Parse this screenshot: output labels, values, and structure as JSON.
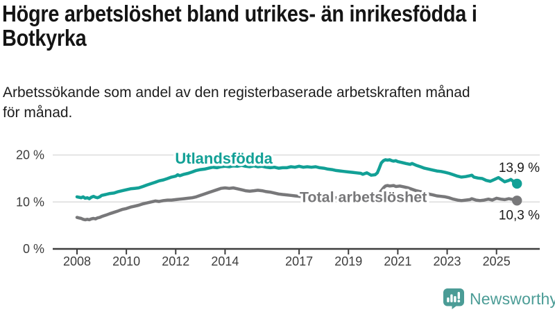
{
  "header": {
    "title_lines": [
      "Högre arbetslöshet bland utrikes- än inrikesfödda i",
      "Botkyrka"
    ],
    "subtitle_lines": [
      "Arbetssökande som andel av den registerbaserade arbetskraften månad",
      "för månad."
    ]
  },
  "branding": {
    "name": "Newsworthy",
    "icon": "newsworthy-chart-bubble-icon",
    "color": "#4b9c96"
  },
  "chart_data": {
    "type": "line",
    "title": "Högre arbetslöshet bland utrikes- än inrikesfödda i Botkyrka",
    "subtitle": "Arbetssökande som andel av den registerbaserade arbetskraften månad för månad.",
    "unit": "%",
    "grid": "horizontal-only",
    "legend": "inline-labels",
    "axis_color": "#3d3d3d",
    "grid_color": "#d9d9d9",
    "end_label_color": "#1a1a1a",
    "xlim": [
      2008,
      2025.83
    ],
    "ylim": [
      0,
      20
    ],
    "x_ticks": [
      2008,
      2010,
      2012,
      2014,
      2017,
      2019,
      2021,
      2023,
      2025
    ],
    "y_ticks": [
      {
        "value": 0,
        "label": "0 %"
      },
      {
        "value": 10,
        "label": "10 %"
      },
      {
        "value": 20,
        "label": "20 %"
      }
    ],
    "series": [
      {
        "name": "Utlandsfödda",
        "color": "#12a096",
        "line_width": 4.5,
        "label_anchor": {
          "x": 2013.95,
          "y": 18.2
        },
        "end_label": "13,9 %",
        "end_value": 13.9,
        "end_label_position": "above",
        "points": [
          [
            2008.0,
            11.1
          ],
          [
            2008.08,
            11.0
          ],
          [
            2008.17,
            10.9
          ],
          [
            2008.25,
            11.1
          ],
          [
            2008.33,
            10.8
          ],
          [
            2008.42,
            10.9
          ],
          [
            2008.5,
            10.7
          ],
          [
            2008.58,
            11.0
          ],
          [
            2008.67,
            11.2
          ],
          [
            2008.75,
            11.0
          ],
          [
            2008.83,
            10.9
          ],
          [
            2008.92,
            11.1
          ],
          [
            2009.0,
            11.4
          ],
          [
            2009.17,
            11.6
          ],
          [
            2009.33,
            11.8
          ],
          [
            2009.5,
            11.9
          ],
          [
            2009.67,
            12.2
          ],
          [
            2009.83,
            12.4
          ],
          [
            2010.0,
            12.6
          ],
          [
            2010.17,
            12.8
          ],
          [
            2010.33,
            12.9
          ],
          [
            2010.5,
            13.0
          ],
          [
            2010.67,
            13.3
          ],
          [
            2010.83,
            13.6
          ],
          [
            2011.0,
            13.9
          ],
          [
            2011.17,
            14.2
          ],
          [
            2011.33,
            14.5
          ],
          [
            2011.5,
            14.7
          ],
          [
            2011.67,
            15.0
          ],
          [
            2011.83,
            15.3
          ],
          [
            2012.0,
            15.5
          ],
          [
            2012.08,
            15.8
          ],
          [
            2012.17,
            15.6
          ],
          [
            2012.33,
            15.9
          ],
          [
            2012.5,
            16.1
          ],
          [
            2012.67,
            16.4
          ],
          [
            2012.83,
            16.7
          ],
          [
            2013.0,
            16.9
          ],
          [
            2013.17,
            17.0
          ],
          [
            2013.33,
            17.2
          ],
          [
            2013.5,
            17.4
          ],
          [
            2013.67,
            17.3
          ],
          [
            2013.83,
            17.5
          ],
          [
            2014.0,
            17.6
          ],
          [
            2014.17,
            17.5
          ],
          [
            2014.33,
            17.7
          ],
          [
            2014.5,
            17.6
          ],
          [
            2014.67,
            17.8
          ],
          [
            2014.83,
            17.6
          ],
          [
            2015.0,
            17.5
          ],
          [
            2015.17,
            17.7
          ],
          [
            2015.33,
            17.5
          ],
          [
            2015.5,
            17.6
          ],
          [
            2015.67,
            17.4
          ],
          [
            2015.83,
            17.3
          ],
          [
            2016.0,
            17.4
          ],
          [
            2016.17,
            17.2
          ],
          [
            2016.33,
            17.3
          ],
          [
            2016.5,
            17.3
          ],
          [
            2016.67,
            17.5
          ],
          [
            2016.83,
            17.4
          ],
          [
            2017.0,
            17.6
          ],
          [
            2017.17,
            17.4
          ],
          [
            2017.33,
            17.5
          ],
          [
            2017.5,
            17.4
          ],
          [
            2017.67,
            17.5
          ],
          [
            2017.83,
            17.3
          ],
          [
            2018.0,
            17.2
          ],
          [
            2018.17,
            17.0
          ],
          [
            2018.33,
            16.9
          ],
          [
            2018.5,
            16.7
          ],
          [
            2018.67,
            16.6
          ],
          [
            2018.83,
            16.5
          ],
          [
            2019.0,
            16.4
          ],
          [
            2019.17,
            16.3
          ],
          [
            2019.33,
            16.2
          ],
          [
            2019.5,
            16.1
          ],
          [
            2019.58,
            15.9
          ],
          [
            2019.75,
            16.2
          ],
          [
            2019.92,
            15.7
          ],
          [
            2020.08,
            15.8
          ],
          [
            2020.17,
            16.2
          ],
          [
            2020.25,
            17.2
          ],
          [
            2020.33,
            18.3
          ],
          [
            2020.42,
            18.8
          ],
          [
            2020.5,
            19.0
          ],
          [
            2020.58,
            18.9
          ],
          [
            2020.67,
            19.0
          ],
          [
            2020.75,
            18.8
          ],
          [
            2020.83,
            18.7
          ],
          [
            2020.92,
            18.8
          ],
          [
            2021.0,
            18.6
          ],
          [
            2021.17,
            18.4
          ],
          [
            2021.33,
            18.2
          ],
          [
            2021.5,
            18.0
          ],
          [
            2021.58,
            18.2
          ],
          [
            2021.75,
            17.8
          ],
          [
            2021.92,
            17.5
          ],
          [
            2022.08,
            17.2
          ],
          [
            2022.25,
            17.0
          ],
          [
            2022.42,
            16.8
          ],
          [
            2022.58,
            16.6
          ],
          [
            2022.75,
            16.5
          ],
          [
            2022.92,
            16.3
          ],
          [
            2023.08,
            16.1
          ],
          [
            2023.25,
            15.8
          ],
          [
            2023.42,
            15.5
          ],
          [
            2023.58,
            15.3
          ],
          [
            2023.75,
            15.4
          ],
          [
            2023.92,
            15.6
          ],
          [
            2024.0,
            15.7
          ],
          [
            2024.08,
            15.3
          ],
          [
            2024.25,
            15.1
          ],
          [
            2024.42,
            15.0
          ],
          [
            2024.58,
            14.6
          ],
          [
            2024.75,
            14.4
          ],
          [
            2024.92,
            14.8
          ],
          [
            2025.08,
            15.2
          ],
          [
            2025.25,
            14.6
          ],
          [
            2025.33,
            14.3
          ],
          [
            2025.5,
            14.6
          ],
          [
            2025.58,
            14.8
          ],
          [
            2025.7,
            14.3
          ],
          [
            2025.83,
            13.9
          ]
        ]
      },
      {
        "name": "Total arbetslöshet",
        "color": "#78787a",
        "line_width": 4.5,
        "label_anchor": {
          "x": 2019.6,
          "y": 10.0
        },
        "end_label": "10,3 %",
        "end_value": 10.3,
        "end_label_position": "below",
        "points": [
          [
            2008.0,
            6.7
          ],
          [
            2008.08,
            6.6
          ],
          [
            2008.17,
            6.5
          ],
          [
            2008.25,
            6.3
          ],
          [
            2008.33,
            6.2
          ],
          [
            2008.42,
            6.3
          ],
          [
            2008.5,
            6.2
          ],
          [
            2008.58,
            6.4
          ],
          [
            2008.67,
            6.5
          ],
          [
            2008.75,
            6.4
          ],
          [
            2008.83,
            6.6
          ],
          [
            2008.92,
            6.7
          ],
          [
            2009.0,
            6.9
          ],
          [
            2009.17,
            7.2
          ],
          [
            2009.33,
            7.5
          ],
          [
            2009.5,
            7.8
          ],
          [
            2009.67,
            8.1
          ],
          [
            2009.83,
            8.4
          ],
          [
            2010.0,
            8.6
          ],
          [
            2010.17,
            8.9
          ],
          [
            2010.33,
            9.1
          ],
          [
            2010.5,
            9.3
          ],
          [
            2010.67,
            9.6
          ],
          [
            2010.83,
            9.8
          ],
          [
            2011.0,
            10.0
          ],
          [
            2011.17,
            10.2
          ],
          [
            2011.33,
            10.1
          ],
          [
            2011.5,
            10.3
          ],
          [
            2011.67,
            10.4
          ],
          [
            2011.83,
            10.4
          ],
          [
            2012.0,
            10.5
          ],
          [
            2012.17,
            10.6
          ],
          [
            2012.33,
            10.7
          ],
          [
            2012.5,
            10.8
          ],
          [
            2012.67,
            10.9
          ],
          [
            2012.83,
            11.1
          ],
          [
            2013.0,
            11.4
          ],
          [
            2013.17,
            11.7
          ],
          [
            2013.33,
            12.0
          ],
          [
            2013.5,
            12.3
          ],
          [
            2013.67,
            12.6
          ],
          [
            2013.83,
            12.9
          ],
          [
            2014.0,
            13.0
          ],
          [
            2014.17,
            12.9
          ],
          [
            2014.33,
            13.0
          ],
          [
            2014.5,
            12.8
          ],
          [
            2014.67,
            12.6
          ],
          [
            2014.83,
            12.4
          ],
          [
            2015.0,
            12.3
          ],
          [
            2015.17,
            12.4
          ],
          [
            2015.33,
            12.5
          ],
          [
            2015.5,
            12.4
          ],
          [
            2015.67,
            12.2
          ],
          [
            2015.83,
            12.1
          ],
          [
            2016.0,
            11.9
          ],
          [
            2016.17,
            11.7
          ],
          [
            2016.33,
            11.6
          ],
          [
            2016.5,
            11.5
          ],
          [
            2016.67,
            11.4
          ],
          [
            2016.83,
            11.3
          ],
          [
            2017.0,
            11.2
          ],
          [
            2017.17,
            11.1
          ],
          [
            2017.33,
            11.0
          ],
          [
            2017.5,
            11.1
          ],
          [
            2017.67,
            11.0
          ],
          [
            2017.83,
            10.9
          ],
          [
            2018.0,
            11.0
          ],
          [
            2018.17,
            10.9
          ],
          [
            2018.33,
            10.8
          ],
          [
            2018.5,
            10.9
          ],
          [
            2018.67,
            10.8
          ],
          [
            2018.83,
            10.7
          ],
          [
            2019.0,
            10.8
          ],
          [
            2019.17,
            10.7
          ],
          [
            2019.33,
            10.6
          ],
          [
            2019.5,
            10.7
          ],
          [
            2019.67,
            10.6
          ],
          [
            2019.83,
            10.7
          ],
          [
            2020.0,
            10.8
          ],
          [
            2020.17,
            11.2
          ],
          [
            2020.33,
            12.4
          ],
          [
            2020.42,
            13.0
          ],
          [
            2020.5,
            13.4
          ],
          [
            2020.58,
            13.5
          ],
          [
            2020.67,
            13.4
          ],
          [
            2020.83,
            13.5
          ],
          [
            2020.92,
            13.3
          ],
          [
            2021.08,
            13.4
          ],
          [
            2021.25,
            13.2
          ],
          [
            2021.42,
            13.0
          ],
          [
            2021.58,
            12.7
          ],
          [
            2021.75,
            12.4
          ],
          [
            2021.92,
            12.2
          ],
          [
            2022.08,
            11.9
          ],
          [
            2022.25,
            11.7
          ],
          [
            2022.42,
            11.5
          ],
          [
            2022.58,
            11.3
          ],
          [
            2022.75,
            11.2
          ],
          [
            2022.92,
            11.1
          ],
          [
            2023.08,
            10.9
          ],
          [
            2023.25,
            10.6
          ],
          [
            2023.42,
            10.4
          ],
          [
            2023.58,
            10.3
          ],
          [
            2023.75,
            10.4
          ],
          [
            2023.92,
            10.5
          ],
          [
            2024.0,
            10.7
          ],
          [
            2024.17,
            10.4
          ],
          [
            2024.33,
            10.3
          ],
          [
            2024.5,
            10.4
          ],
          [
            2024.67,
            10.6
          ],
          [
            2024.83,
            10.4
          ],
          [
            2025.0,
            10.8
          ],
          [
            2025.17,
            10.6
          ],
          [
            2025.33,
            10.5
          ],
          [
            2025.5,
            10.7
          ],
          [
            2025.58,
            10.6
          ],
          [
            2025.7,
            10.5
          ],
          [
            2025.83,
            10.3
          ]
        ]
      }
    ]
  }
}
